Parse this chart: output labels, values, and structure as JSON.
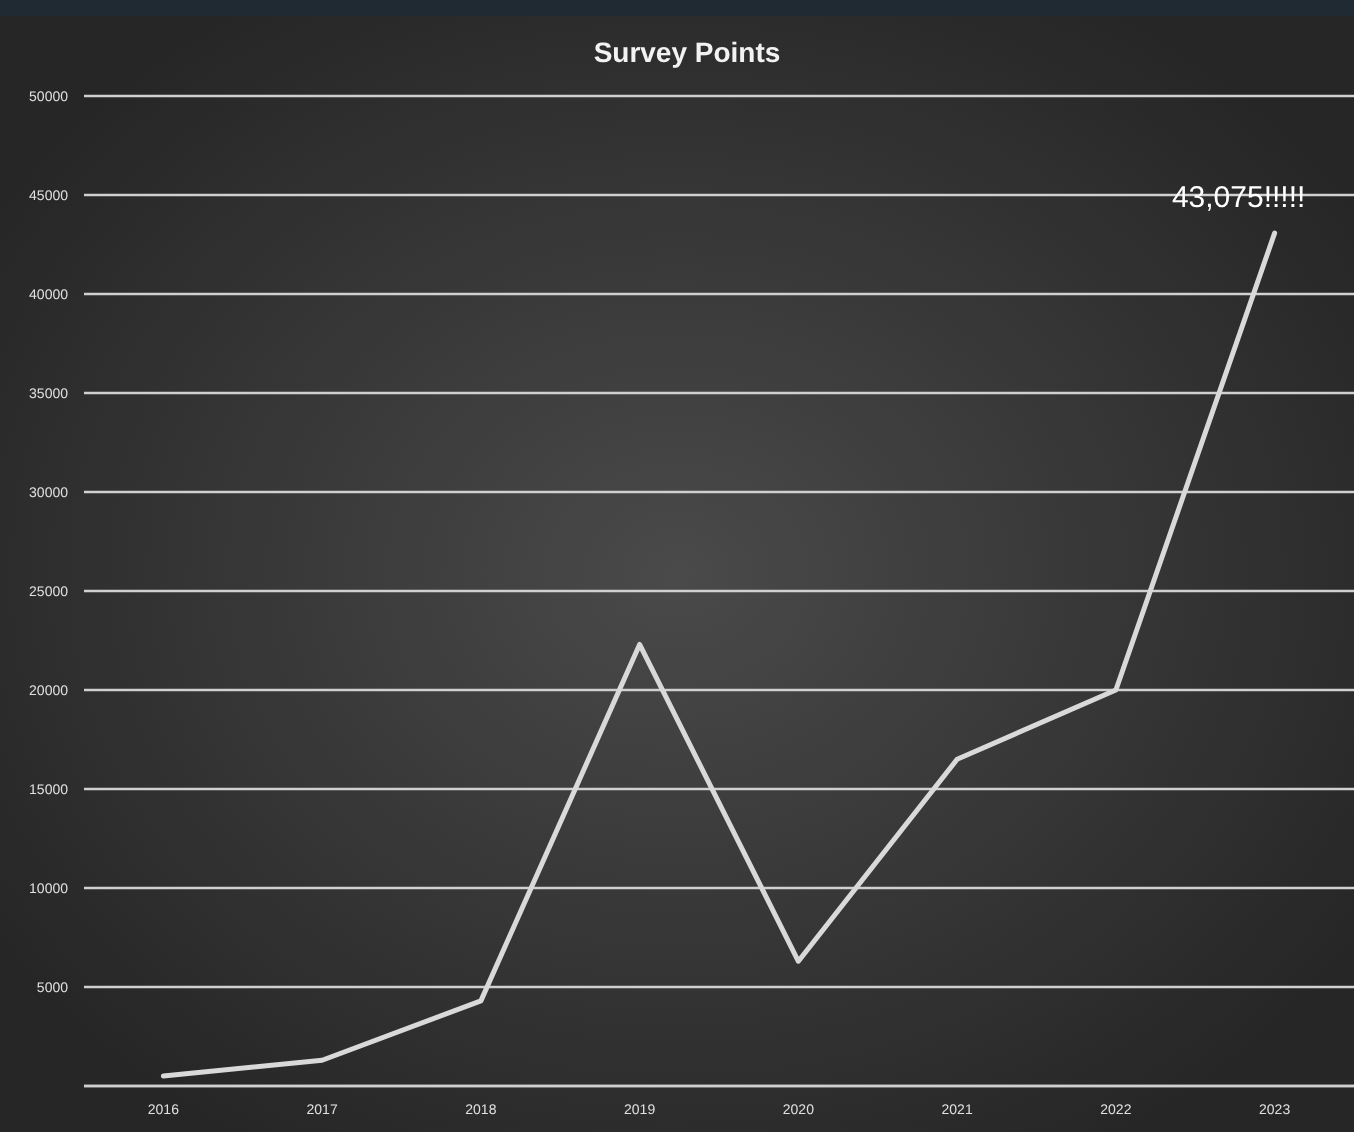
{
  "chart_data": {
    "type": "line",
    "title": "Survey Points",
    "categories": [
      "2016",
      "2017",
      "2018",
      "2019",
      "2020",
      "2021",
      "2022",
      "2023"
    ],
    "values": [
      500,
      1300,
      4300,
      22300,
      6300,
      16500,
      20000,
      43075
    ],
    "color": "#d9d9d9",
    "ylim": [
      0,
      50000
    ],
    "yticks": [
      {
        "value": 0,
        "label": null
      },
      5000,
      10000,
      15000,
      20000,
      25000,
      30000,
      35000,
      40000,
      45000,
      50000
    ],
    "grid": true,
    "marker": "none",
    "line_style": "solid",
    "annotations": [
      {
        "text": "43,075!!!!!",
        "x": "2023",
        "y": 43075
      }
    ]
  }
}
